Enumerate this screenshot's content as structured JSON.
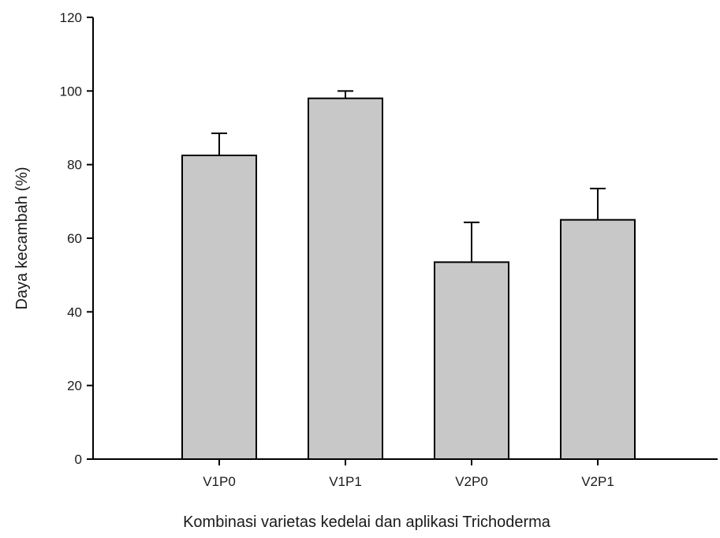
{
  "chart_data": {
    "type": "bar",
    "categories": [
      "V1P0",
      "V1P1",
      "V2P0",
      "V2P1"
    ],
    "values": [
      82.5,
      98.0,
      53.5,
      65.0
    ],
    "error_bars": [
      6.0,
      2.0,
      10.8,
      8.5
    ],
    "error_bar_direction": "upper",
    "title": "",
    "xlabel": "Kombinasi varietas kedelai dan aplikasi Trichoderma",
    "ylabel": "Daya kecambah (%)",
    "ylim": [
      0,
      120
    ],
    "yticks": [
      "0",
      "20",
      "40",
      "60",
      "80",
      "100",
      "120"
    ],
    "grid": false,
    "legend": "none",
    "colors": {
      "bar_fill": "#c8c8c8",
      "bar_stroke": "#000000",
      "axis": "#000000"
    }
  }
}
